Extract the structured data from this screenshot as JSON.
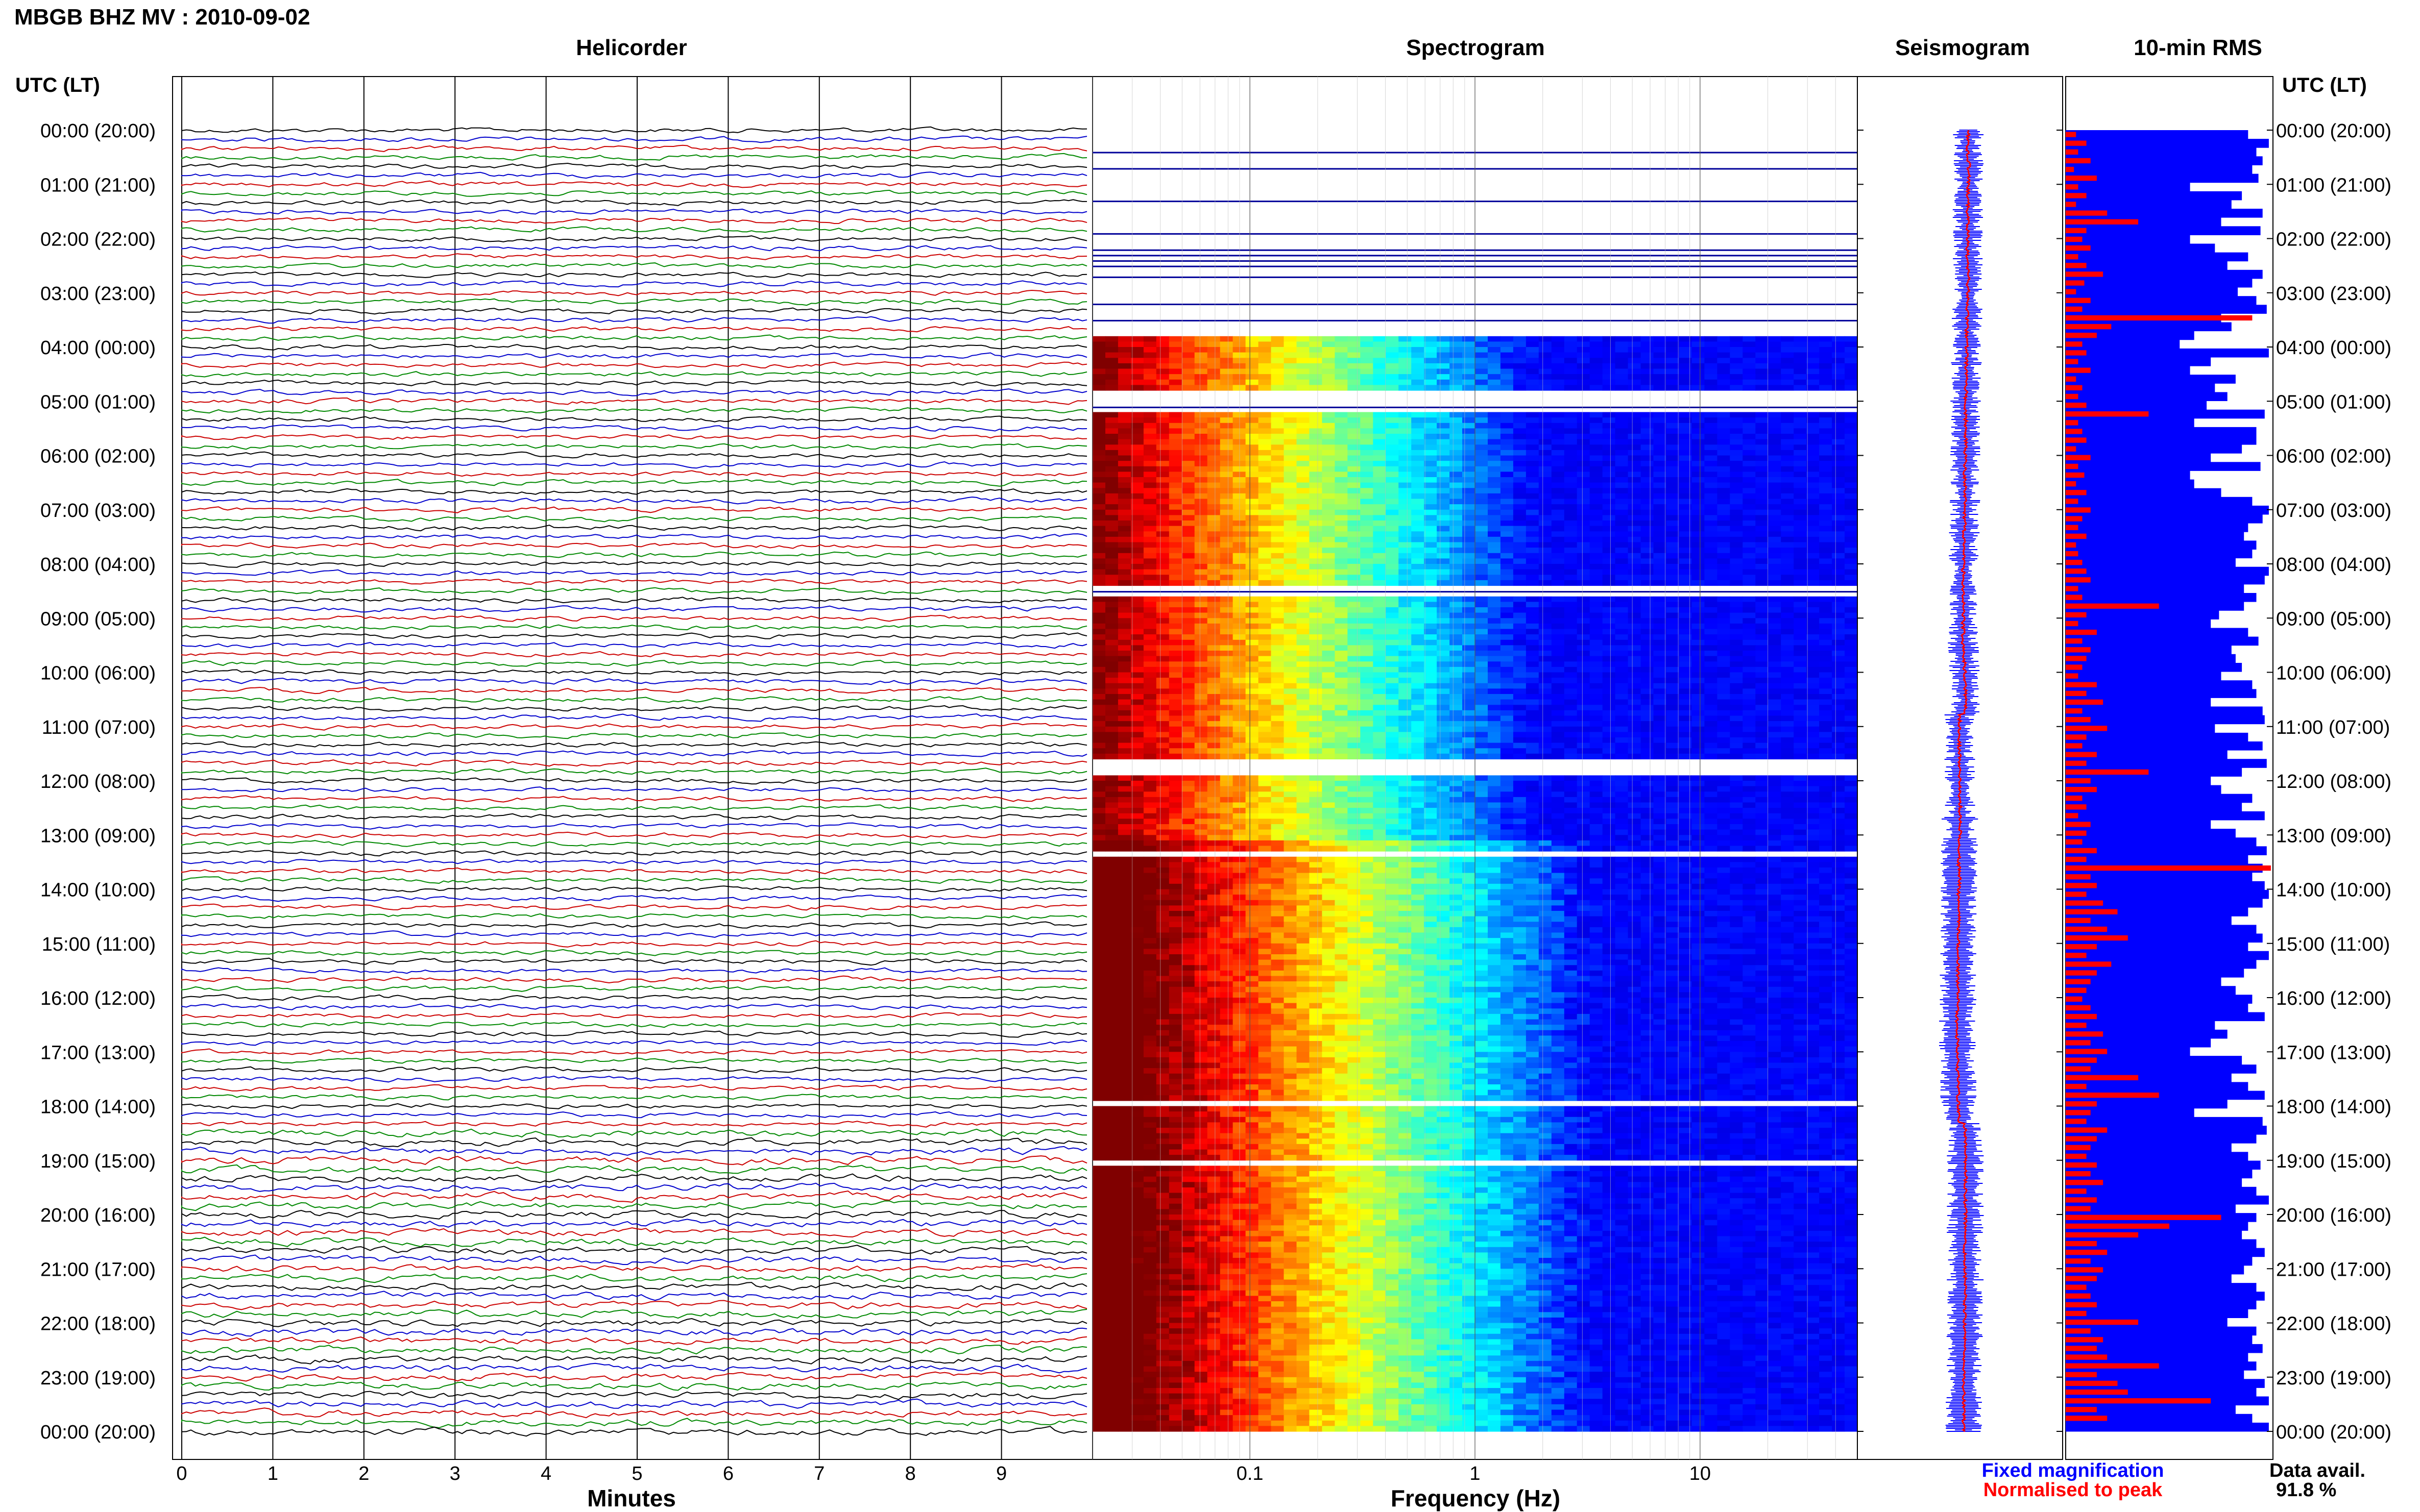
{
  "header": {
    "title": "MBGB BHZ MV : 2010-09-02",
    "utc_label": "UTC (LT)"
  },
  "panels": {
    "helicorder": "Helicorder",
    "spectrogram": "Spectrogram",
    "seismogram": "Seismogram",
    "rms": "10-min RMS"
  },
  "colors": {
    "trace_colors": [
      "#000000",
      "#0000cc",
      "#cc0000",
      "#008800"
    ],
    "rms_blue": "#0000ff",
    "rms_red": "#ff0000",
    "grid": "#000000"
  },
  "chart_data": {
    "type": "heatmap",
    "time_labels": [
      "00:00 (20:00)",
      "01:00 (21:00)",
      "02:00 (22:00)",
      "03:00 (23:00)",
      "04:00 (00:00)",
      "05:00 (01:00)",
      "06:00 (02:00)",
      "07:00 (03:00)",
      "08:00 (04:00)",
      "09:00 (05:00)",
      "10:00 (06:00)",
      "11:00 (07:00)",
      "12:00 (08:00)",
      "13:00 (09:00)",
      "14:00 (10:00)",
      "15:00 (11:00)",
      "16:00 (12:00)",
      "17:00 (13:00)",
      "18:00 (14:00)",
      "19:00 (15:00)",
      "20:00 (16:00)",
      "21:00 (17:00)",
      "22:00 (18:00)",
      "23:00 (19:00)",
      "00:00 (20:00)"
    ],
    "helicorder": {
      "xlabel": "Minutes",
      "x_ticks": [
        "0",
        "1",
        "2",
        "3",
        "4",
        "5",
        "6",
        "7",
        "8",
        "9"
      ],
      "xlim": [
        0,
        10
      ],
      "traces_per_hour": 6
    },
    "spectrogram": {
      "xlabel": "Frequency (Hz)",
      "x_scale": "log",
      "x_ticks": [
        "0.1",
        "1",
        "10"
      ],
      "xlim": [
        0.02,
        50
      ],
      "colormap": "jet",
      "gap_bands_hours": [
        [
          0.0,
          3.8
        ],
        [
          4.8,
          5.2
        ],
        [
          8.4,
          8.6
        ],
        [
          11.6,
          11.9
        ],
        [
          13.3,
          13.4
        ],
        [
          17.9,
          18.0
        ],
        [
          19.0,
          19.05
        ]
      ]
    },
    "seismogram": {
      "legend": [
        {
          "name": "Fixed magnification",
          "color": "#0000ff"
        },
        {
          "name": "Normalised to peak",
          "color": "#ff0000"
        }
      ]
    },
    "rms": {
      "interval_minutes": 10,
      "series": [
        {
          "name": "blue",
          "values": [
            0.88,
            0.98,
            0.92,
            0.95,
            0.9,
            0.93,
            0.6,
            0.85,
            0.8,
            0.95,
            0.75,
            0.94,
            0.6,
            0.72,
            0.88,
            0.78,
            0.95,
            0.9,
            0.83,
            0.92,
            0.97,
            0.75,
            0.8,
            0.62,
            0.55,
            0.98,
            0.7,
            0.6,
            0.82,
            0.72,
            0.78,
            0.68,
            0.96,
            0.62,
            0.92,
            0.92,
            0.85,
            0.7,
            0.94,
            0.6,
            0.62,
            0.75,
            0.9,
            0.98,
            0.95,
            0.88,
            0.86,
            0.92,
            0.9,
            0.82,
            0.98,
            0.96,
            0.86,
            0.92,
            0.86,
            0.74,
            0.7,
            0.88,
            0.93,
            0.8,
            0.82,
            0.85,
            0.75,
            0.9,
            0.92,
            0.7,
            0.95,
            0.96,
            0.72,
            0.88,
            0.95,
            0.78,
            0.97,
            0.85,
            0.7,
            0.75,
            0.9,
            0.85,
            0.96,
            0.7,
            0.82,
            0.92,
            0.97,
            0.88,
            0.95,
            0.9,
            0.96,
            0.98,
            0.95,
            0.88,
            0.8,
            0.92,
            0.95,
            0.88,
            0.98,
            0.92,
            0.86,
            0.75,
            0.82,
            0.9,
            0.88,
            0.96,
            0.72,
            0.78,
            0.7,
            0.6,
            0.85,
            0.92,
            0.8,
            0.88,
            0.96,
            0.78,
            0.62,
            0.95,
            0.97,
            0.92,
            0.8,
            0.88,
            0.94,
            0.9,
            0.85,
            0.92,
            0.98,
            0.82,
            0.92,
            0.88,
            0.85,
            0.92,
            0.96,
            0.9,
            0.86,
            0.8,
            0.92,
            0.96,
            0.92,
            0.88,
            0.78,
            0.92,
            0.9,
            0.95,
            0.88,
            0.92,
            0.86,
            0.96,
            0.92,
            0.98,
            0.82,
            0.9,
            0.98
          ]
        },
        {
          "name": "red",
          "values": [
            0.05,
            0.1,
            0.06,
            0.12,
            0.04,
            0.15,
            0.06,
            0.1,
            0.05,
            0.2,
            0.35,
            0.1,
            0.08,
            0.12,
            0.06,
            0.1,
            0.18,
            0.09,
            0.05,
            0.12,
            0.08,
            0.9,
            0.22,
            0.15,
            0.08,
            0.1,
            0.06,
            0.12,
            0.05,
            0.08,
            0.06,
            0.1,
            0.4,
            0.06,
            0.08,
            0.1,
            0.05,
            0.12,
            0.06,
            0.09,
            0.05,
            0.1,
            0.06,
            0.12,
            0.08,
            0.06,
            0.1,
            0.05,
            0.06,
            0.08,
            0.1,
            0.12,
            0.06,
            0.08,
            0.45,
            0.1,
            0.06,
            0.15,
            0.08,
            0.12,
            0.1,
            0.08,
            0.06,
            0.15,
            0.1,
            0.18,
            0.08,
            0.12,
            0.2,
            0.1,
            0.08,
            0.15,
            0.1,
            0.4,
            0.12,
            0.15,
            0.08,
            0.1,
            0.06,
            0.12,
            0.1,
            0.08,
            0.15,
            0.1,
            0.99,
            0.12,
            0.15,
            0.1,
            0.18,
            0.25,
            0.12,
            0.2,
            0.3,
            0.15,
            0.1,
            0.22,
            0.15,
            0.12,
            0.1,
            0.08,
            0.12,
            0.15,
            0.1,
            0.18,
            0.12,
            0.2,
            0.15,
            0.12,
            0.35,
            0.1,
            0.45,
            0.15,
            0.12,
            0.1,
            0.2,
            0.15,
            0.12,
            0.1,
            0.15,
            0.12,
            0.18,
            0.1,
            0.15,
            0.12,
            0.75,
            0.5,
            0.35,
            0.15,
            0.2,
            0.12,
            0.18,
            0.15,
            0.1,
            0.12,
            0.15,
            0.1,
            0.35,
            0.12,
            0.18,
            0.15,
            0.2,
            0.45,
            0.15,
            0.25,
            0.3,
            0.7,
            0.15,
            0.2
          ]
        }
      ]
    }
  },
  "footer": {
    "avail_label": "Data avail.",
    "avail_value": "91.8 %"
  }
}
